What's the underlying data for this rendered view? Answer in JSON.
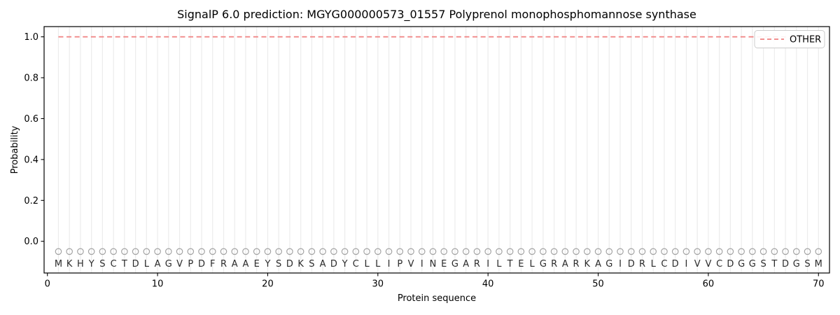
{
  "chart_data": {
    "type": "line",
    "title": "SignalP 6.0 prediction: MGYG000000573_01557 Polyprenol monophosphomannose synthase",
    "xlabel": "Protein sequence",
    "ylabel": "Probability",
    "x_ticks": [
      0,
      10,
      20,
      30,
      40,
      50,
      60,
      70
    ],
    "y_ticks": [
      0.0,
      0.2,
      0.4,
      0.6,
      0.8,
      1.0
    ],
    "xlim": [
      -0.3,
      71
    ],
    "ylim": [
      -0.155,
      1.05
    ],
    "grid": "vertical line at every residue position",
    "legend_position": "upper right",
    "sequence": [
      "M",
      "K",
      "H",
      "Y",
      "S",
      "C",
      "T",
      "D",
      "L",
      "A",
      "G",
      "V",
      "P",
      "D",
      "F",
      "R",
      "A",
      "A",
      "E",
      "Y",
      "S",
      "D",
      "K",
      "S",
      "A",
      "D",
      "Y",
      "C",
      "L",
      "L",
      "I",
      "P",
      "V",
      "I",
      "N",
      "E",
      "G",
      "A",
      "R",
      "I",
      "L",
      "T",
      "E",
      "L",
      "G",
      "R",
      "A",
      "R",
      "K",
      "A",
      "G",
      "I",
      "D",
      "R",
      "L",
      "C",
      "D",
      "I",
      "V",
      "V",
      "C",
      "D",
      "G",
      "G",
      "S",
      "T",
      "D",
      "G",
      "S",
      "M"
    ],
    "series": [
      {
        "name": "OTHER",
        "color": "#f08080",
        "style": "dashed",
        "x_start": 1,
        "values": [
          1,
          1,
          1,
          1,
          1,
          1,
          1,
          1,
          1,
          1,
          1,
          1,
          1,
          1,
          1,
          1,
          1,
          1,
          1,
          1,
          1,
          1,
          1,
          1,
          1,
          1,
          1,
          1,
          1,
          1,
          1,
          1,
          1,
          1,
          1,
          1,
          1,
          1,
          1,
          1,
          1,
          1,
          1,
          1,
          1,
          1,
          1,
          1,
          1,
          1,
          1,
          1,
          1,
          1,
          1,
          1,
          1,
          1,
          1,
          1,
          1,
          1,
          1,
          1,
          1,
          1,
          1,
          1,
          1,
          1
        ]
      }
    ],
    "residue_marker": {
      "shape": "open-circle",
      "color": "#a3a3a3",
      "y": -0.05
    },
    "colors": {
      "grid": "#ececec",
      "spine": "#000000",
      "letters": "#2b2b2b",
      "legend_border": "#cccccc"
    }
  }
}
